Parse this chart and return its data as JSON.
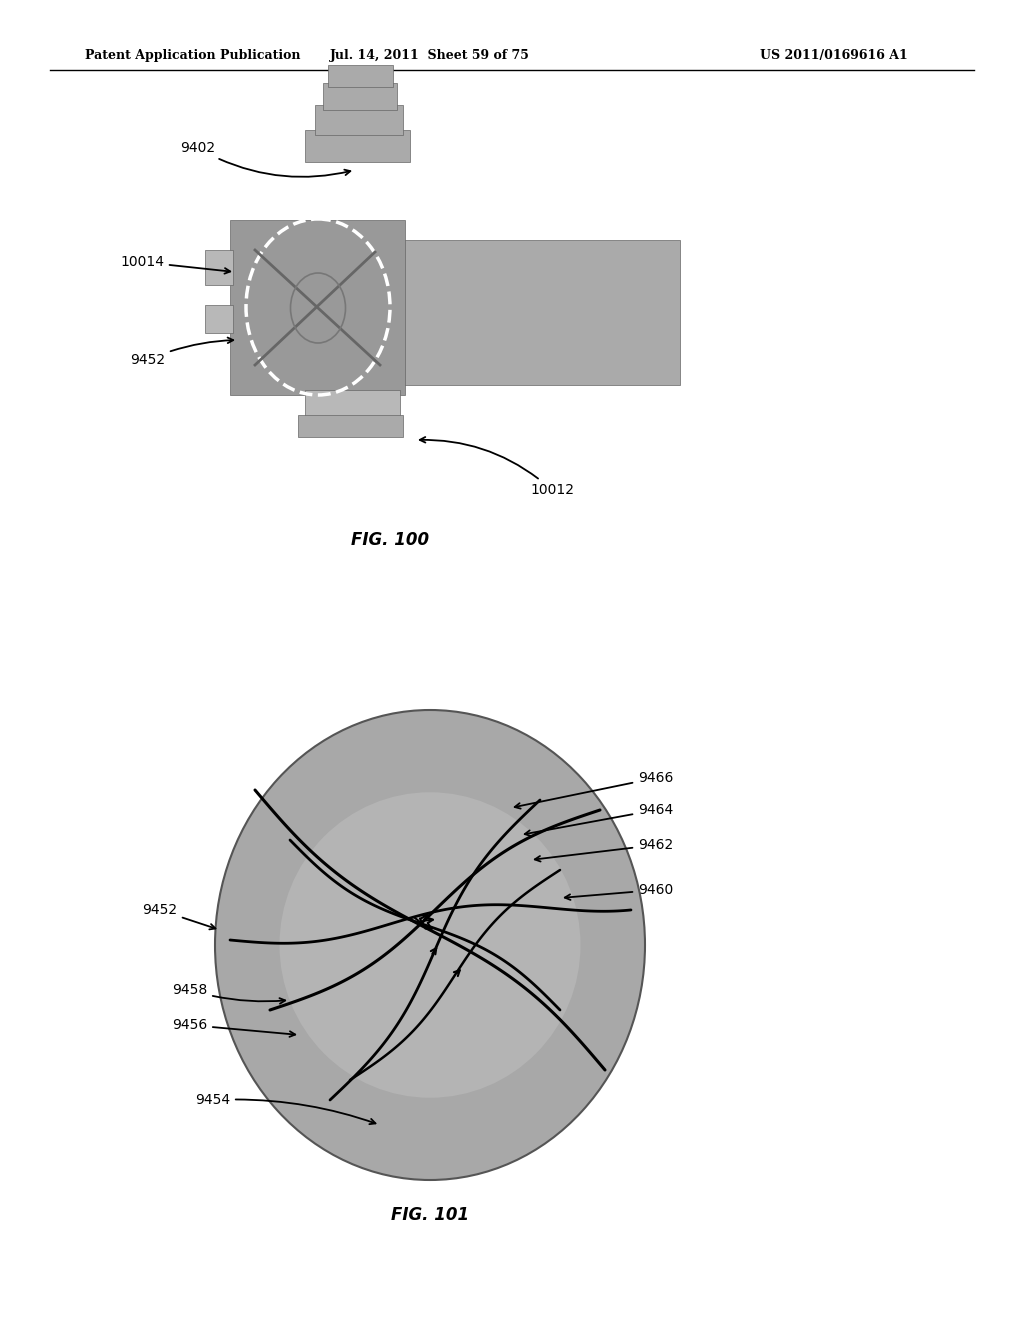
{
  "bg_color": "#ffffff",
  "header_left": "Patent Application Publication",
  "header_mid": "Jul. 14, 2011  Sheet 59 of 75",
  "header_right": "US 2011/0169616 A1",
  "fig100_caption": "FIG. 100",
  "fig101_caption": "FIG. 101",
  "gray_fill": "#aaaaaa",
  "gray_dark": "#888888",
  "gray_medium": "#999999",
  "gray_light": "#bbbbbb"
}
